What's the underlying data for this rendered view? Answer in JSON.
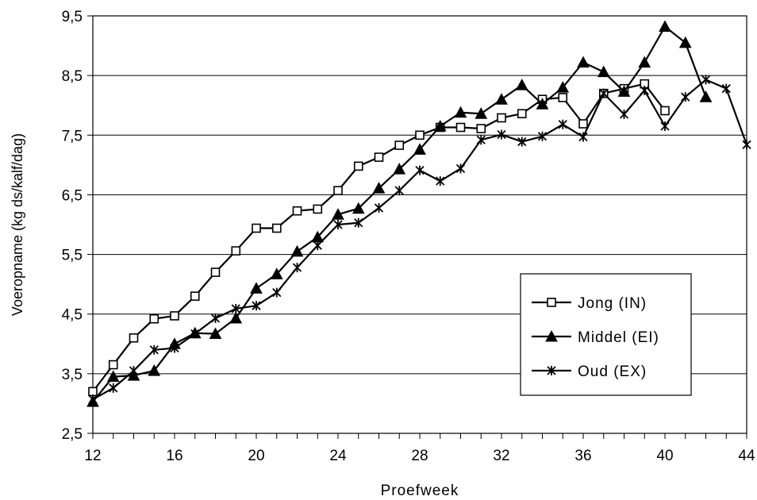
{
  "chart_data": {
    "type": "line",
    "xlabel": "Proefweek",
    "ylabel": "Voeropname (kg ds/kalf/dag)",
    "xlim": [
      12,
      44
    ],
    "ylim": [
      2.5,
      9.5
    ],
    "x_ticks": [
      "12",
      "16",
      "20",
      "24",
      "28",
      "32",
      "36",
      "40",
      "44"
    ],
    "y_ticks": [
      "2,5",
      "3,5",
      "4,5",
      "5,5",
      "6,5",
      "7,5",
      "8,5",
      "9,5"
    ],
    "grid": "horizontal",
    "legend_position": "right",
    "series": [
      {
        "name": "Jong (IN)",
        "marker": "square",
        "x": [
          12,
          13,
          14,
          15,
          16,
          17,
          18,
          19,
          20,
          21,
          22,
          23,
          24,
          25,
          26,
          27,
          28,
          29,
          30,
          31,
          32,
          33,
          34,
          35,
          36,
          37,
          38,
          39,
          40
        ],
        "values": [
          3.2,
          3.65,
          4.1,
          4.42,
          4.47,
          4.8,
          5.2,
          5.56,
          5.94,
          5.94,
          6.23,
          6.26,
          6.57,
          6.98,
          7.13,
          7.33,
          7.5,
          7.63,
          7.63,
          7.61,
          7.79,
          7.86,
          8.1,
          8.13,
          7.69,
          8.2,
          8.28,
          8.36,
          7.91
        ]
      },
      {
        "name": "Middel (EI)",
        "marker": "triangle",
        "x": [
          12,
          13,
          14,
          15,
          16,
          17,
          18,
          19,
          20,
          21,
          22,
          23,
          24,
          25,
          26,
          27,
          28,
          29,
          30,
          31,
          32,
          33,
          34,
          35,
          36,
          37,
          38,
          39,
          40,
          41,
          42
        ],
        "values": [
          3.03,
          3.45,
          3.47,
          3.55,
          4.0,
          4.18,
          4.17,
          4.43,
          4.93,
          5.17,
          5.55,
          5.79,
          6.17,
          6.27,
          6.61,
          6.93,
          7.26,
          7.65,
          7.88,
          7.86,
          8.1,
          8.34,
          8.02,
          8.3,
          8.72,
          8.56,
          8.23,
          8.72,
          9.32,
          9.05,
          8.14
        ]
      },
      {
        "name": "Oud (EX)",
        "marker": "star",
        "x": [
          12,
          13,
          14,
          15,
          16,
          17,
          18,
          19,
          20,
          21,
          22,
          23,
          24,
          25,
          26,
          27,
          28,
          29,
          30,
          31,
          32,
          33,
          34,
          35,
          36,
          37,
          38,
          39,
          40,
          41,
          42,
          43,
          44
        ],
        "values": [
          3.07,
          3.26,
          3.55,
          3.9,
          3.93,
          4.17,
          4.43,
          4.59,
          4.64,
          4.86,
          5.28,
          5.65,
          6.0,
          6.03,
          6.28,
          6.57,
          6.91,
          6.73,
          6.94,
          7.42,
          7.51,
          7.39,
          7.48,
          7.68,
          7.47,
          8.2,
          7.85,
          8.25,
          7.65,
          8.14,
          8.43,
          8.28,
          7.34
        ]
      }
    ]
  }
}
